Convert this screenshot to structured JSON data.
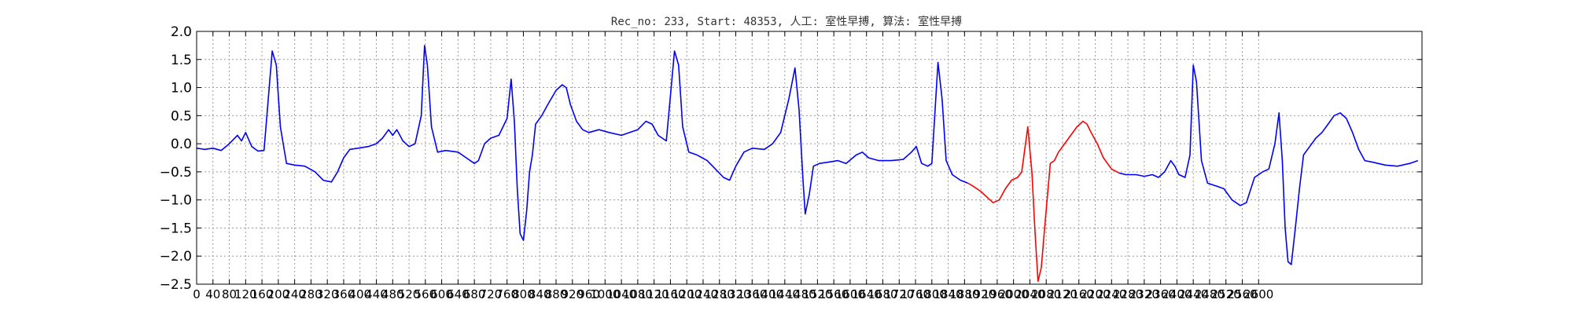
{
  "chart_data": {
    "type": "line",
    "title": "Rec_no: 233, Start: 48353, 人工: 室性早搏, 算法: 室性早搏",
    "xlabel": "",
    "ylabel": "",
    "xlim": [
      0,
      3000
    ],
    "ylim": [
      -2.5,
      2.0
    ],
    "yticks": [
      -2.5,
      -2.0,
      -1.5,
      -1.0,
      -0.5,
      0.0,
      0.5,
      1.0,
      1.5,
      2.0
    ],
    "ytick_labels": [
      "−2.5",
      "−2.0",
      "−1.5",
      "−1.0",
      "−0.5",
      "0.0",
      "0.5",
      "1.0",
      "1.5",
      "2.0"
    ],
    "xticks": [
      0,
      40,
      80,
      120,
      160,
      200,
      240,
      280,
      320,
      360,
      400,
      440,
      480,
      520,
      560,
      600,
      640,
      680,
      720,
      760,
      800,
      840,
      880,
      920,
      960,
      1000,
      1040,
      1080,
      1120,
      1160,
      1200,
      1240,
      1280,
      1320,
      1360,
      1400,
      1440,
      1480,
      1520,
      1560,
      1600,
      1640,
      1680,
      1720,
      1760,
      1800,
      1840,
      1880,
      1920,
      1960,
      2000,
      2040,
      2080,
      2120,
      2160,
      2200,
      2240,
      2280,
      2320,
      2360,
      2400,
      2440,
      2480,
      2520,
      2560,
      2600
    ],
    "grid": true,
    "colors": {
      "normal": "#0000ff",
      "highlight": "#ff0000"
    },
    "series": [
      {
        "color": "#0000ff",
        "points": [
          [
            0,
            -0.08
          ],
          [
            20,
            -0.1
          ],
          [
            40,
            -0.08
          ],
          [
            60,
            -0.12
          ],
          [
            80,
            0.0
          ],
          [
            100,
            0.15
          ],
          [
            110,
            0.05
          ],
          [
            120,
            0.2
          ],
          [
            135,
            -0.05
          ],
          [
            150,
            -0.13
          ],
          [
            165,
            -0.12
          ],
          [
            185,
            1.65
          ],
          [
            195,
            1.4
          ],
          [
            205,
            0.3
          ],
          [
            220,
            -0.35
          ],
          [
            240,
            -0.38
          ],
          [
            265,
            -0.4
          ],
          [
            290,
            -0.5
          ],
          [
            310,
            -0.65
          ],
          [
            330,
            -0.68
          ],
          [
            345,
            -0.5
          ],
          [
            360,
            -0.25
          ],
          [
            375,
            -0.1
          ],
          [
            395,
            -0.08
          ],
          [
            420,
            -0.05
          ],
          [
            440,
            0.0
          ],
          [
            455,
            0.1
          ],
          [
            470,
            0.25
          ],
          [
            480,
            0.15
          ],
          [
            490,
            0.25
          ],
          [
            505,
            0.05
          ],
          [
            520,
            -0.05
          ],
          [
            535,
            0.0
          ],
          [
            550,
            0.5
          ],
          [
            558,
            1.75
          ],
          [
            565,
            1.4
          ],
          [
            575,
            0.3
          ],
          [
            590,
            -0.15
          ],
          [
            610,
            -0.12
          ],
          [
            640,
            -0.15
          ],
          [
            660,
            -0.25
          ],
          [
            680,
            -0.35
          ],
          [
            690,
            -0.3
          ],
          [
            705,
            0.0
          ],
          [
            720,
            0.1
          ],
          [
            740,
            0.15
          ],
          [
            760,
            0.45
          ],
          [
            770,
            1.15
          ],
          [
            778,
            0.4
          ],
          [
            785,
            -0.8
          ],
          [
            792,
            -1.6
          ],
          [
            800,
            -1.72
          ],
          [
            808,
            -1.2
          ],
          [
            815,
            -0.5
          ],
          [
            822,
            -0.2
          ],
          [
            830,
            0.35
          ],
          [
            845,
            0.5
          ],
          [
            860,
            0.7
          ],
          [
            880,
            0.95
          ],
          [
            895,
            1.05
          ],
          [
            905,
            1.0
          ],
          [
            915,
            0.7
          ],
          [
            930,
            0.4
          ],
          [
            945,
            0.25
          ],
          [
            960,
            0.2
          ],
          [
            985,
            0.25
          ],
          [
            1010,
            0.2
          ],
          [
            1040,
            0.15
          ],
          [
            1060,
            0.2
          ],
          [
            1080,
            0.25
          ],
          [
            1100,
            0.4
          ],
          [
            1115,
            0.35
          ],
          [
            1130,
            0.15
          ],
          [
            1150,
            0.05
          ],
          [
            1170,
            1.65
          ],
          [
            1180,
            1.4
          ],
          [
            1190,
            0.3
          ],
          [
            1205,
            -0.15
          ],
          [
            1225,
            -0.2
          ],
          [
            1250,
            -0.3
          ],
          [
            1270,
            -0.45
          ],
          [
            1290,
            -0.6
          ],
          [
            1305,
            -0.65
          ],
          [
            1320,
            -0.4
          ],
          [
            1340,
            -0.15
          ],
          [
            1360,
            -0.08
          ],
          [
            1390,
            -0.1
          ],
          [
            1410,
            0.0
          ],
          [
            1430,
            0.2
          ],
          [
            1450,
            0.8
          ],
          [
            1465,
            1.35
          ],
          [
            1475,
            0.6
          ],
          [
            1485,
            -0.7
          ],
          [
            1490,
            -1.25
          ],
          [
            1500,
            -0.9
          ],
          [
            1510,
            -0.4
          ],
          [
            1525,
            -0.35
          ],
          [
            1545,
            -0.33
          ],
          [
            1570,
            -0.3
          ],
          [
            1590,
            -0.35
          ],
          [
            1615,
            -0.2
          ],
          [
            1630,
            -0.15
          ],
          [
            1645,
            -0.25
          ],
          [
            1670,
            -0.3
          ],
          [
            1700,
            -0.3
          ],
          [
            1730,
            -0.28
          ],
          [
            1750,
            -0.15
          ],
          [
            1762,
            -0.05
          ],
          [
            1775,
            -0.35
          ],
          [
            1790,
            -0.4
          ],
          [
            1800,
            -0.35
          ],
          [
            1815,
            1.45
          ],
          [
            1825,
            0.8
          ],
          [
            1835,
            -0.3
          ],
          [
            1850,
            -0.55
          ],
          [
            1870,
            -0.65
          ],
          [
            1888,
            -0.7
          ]
        ]
      },
      {
        "color": "#ff0000",
        "points": [
          [
            1888,
            -0.7
          ],
          [
            1900,
            -0.75
          ],
          [
            1920,
            -0.85
          ],
          [
            1935,
            -0.95
          ],
          [
            1950,
            -1.05
          ],
          [
            1965,
            -1.0
          ],
          [
            1980,
            -0.8
          ],
          [
            1995,
            -0.65
          ],
          [
            2010,
            -0.6
          ],
          [
            2020,
            -0.5
          ],
          [
            2035,
            0.3
          ],
          [
            2045,
            -0.5
          ],
          [
            2052,
            -1.5
          ],
          [
            2060,
            -2.45
          ],
          [
            2068,
            -2.2
          ],
          [
            2075,
            -1.6
          ],
          [
            2082,
            -1.0
          ],
          [
            2090,
            -0.35
          ],
          [
            2100,
            -0.3
          ],
          [
            2110,
            -0.15
          ],
          [
            2125,
            0.0
          ],
          [
            2140,
            0.15
          ],
          [
            2155,
            0.3
          ],
          [
            2170,
            0.4
          ],
          [
            2180,
            0.35
          ],
          [
            2190,
            0.2
          ],
          [
            2205,
            0.0
          ],
          [
            2220,
            -0.25
          ],
          [
            2240,
            -0.45
          ],
          [
            2258,
            -0.52
          ]
        ]
      },
      {
        "color": "#0000ff",
        "points": [
          [
            2258,
            -0.52
          ],
          [
            2275,
            -0.55
          ],
          [
            2300,
            -0.55
          ],
          [
            2320,
            -0.58
          ],
          [
            2340,
            -0.55
          ],
          [
            2355,
            -0.6
          ],
          [
            2370,
            -0.5
          ],
          [
            2385,
            -0.3
          ],
          [
            2395,
            -0.4
          ],
          [
            2405,
            -0.55
          ],
          [
            2420,
            -0.6
          ],
          [
            2432,
            -0.2
          ],
          [
            2440,
            1.4
          ],
          [
            2448,
            1.1
          ],
          [
            2460,
            -0.3
          ],
          [
            2475,
            -0.7
          ],
          [
            2495,
            -0.75
          ],
          [
            2515,
            -0.8
          ],
          [
            2535,
            -1.0
          ],
          [
            2555,
            -1.1
          ],
          [
            2570,
            -1.05
          ],
          [
            2590,
            -0.6
          ],
          [
            2610,
            -0.5
          ],
          [
            2625,
            -0.45
          ],
          [
            2640,
            0.0
          ],
          [
            2650,
            0.55
          ],
          [
            2658,
            -0.3
          ],
          [
            2665,
            -1.5
          ],
          [
            2672,
            -2.1
          ],
          [
            2680,
            -2.15
          ],
          [
            2690,
            -1.5
          ],
          [
            2700,
            -0.8
          ],
          [
            2710,
            -0.2
          ],
          [
            2725,
            -0.05
          ],
          [
            2740,
            0.1
          ],
          [
            2755,
            0.2
          ],
          [
            2770,
            0.35
          ],
          [
            2785,
            0.5
          ],
          [
            2800,
            0.55
          ],
          [
            2815,
            0.45
          ],
          [
            2830,
            0.2
          ],
          [
            2845,
            -0.1
          ],
          [
            2860,
            -0.3
          ],
          [
            2880,
            -0.33
          ],
          [
            2910,
            -0.38
          ],
          [
            2940,
            -0.4
          ],
          [
            2970,
            -0.35
          ],
          [
            2990,
            -0.3
          ]
        ]
      }
    ]
  }
}
